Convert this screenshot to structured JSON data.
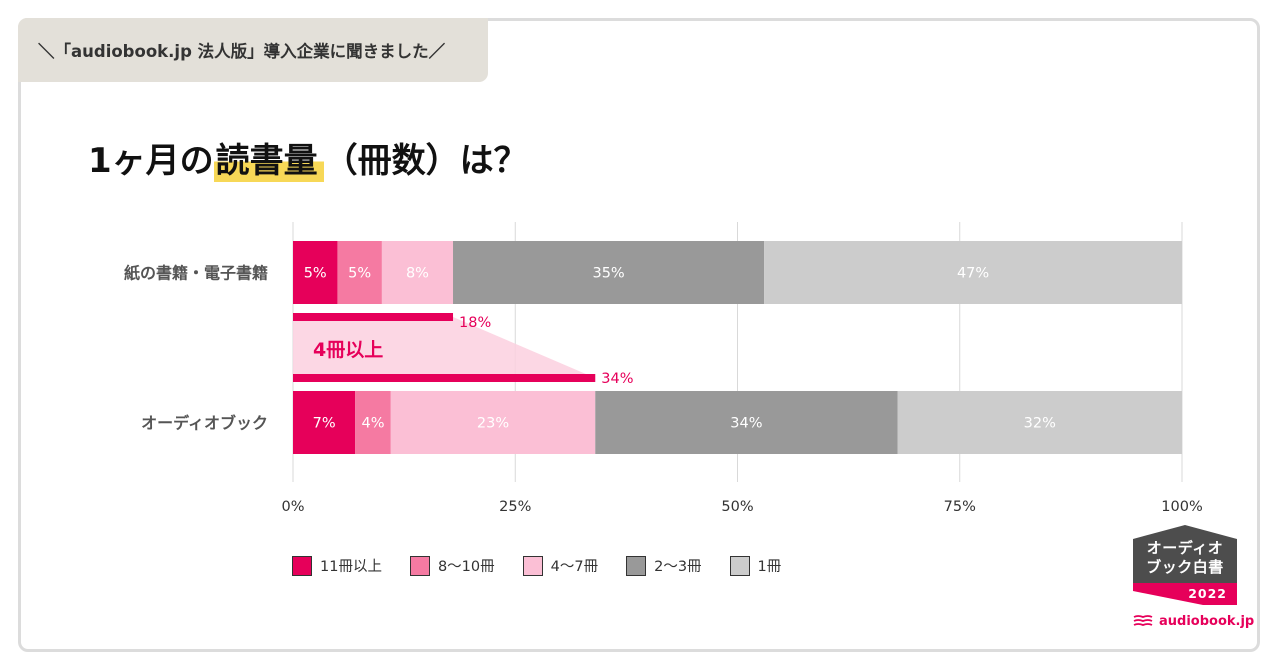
{
  "header": {
    "tag": "＼「audiobook.jp 法人版」導入企業に聞きました／",
    "title_pre": "1ヶ月の",
    "title_highlight": "読書量",
    "title_post": "（冊数）は？"
  },
  "colors": {
    "pink_dark": "#e6005a",
    "pink_mid": "#f57aa2",
    "pink_light": "#fbbfd5",
    "gray_dark": "#999999",
    "gray_light": "#cccccc",
    "highlight": "#f7d857",
    "band": "#fbd0df"
  },
  "chart_data": {
    "type": "bar",
    "orientation": "horizontal",
    "stacked": true,
    "categories": [
      "紙の書籍・電子書籍",
      "オーディオブック"
    ],
    "series": [
      {
        "name": "11冊以上",
        "values": [
          5,
          7
        ],
        "labels": [
          "5%",
          "7%"
        ]
      },
      {
        "name": "8〜10冊",
        "values": [
          5,
          4
        ],
        "labels": [
          "5%",
          "4%"
        ]
      },
      {
        "name": "4〜7冊",
        "values": [
          8,
          23
        ],
        "labels": [
          "8%",
          "23%"
        ]
      },
      {
        "name": "2〜3冊",
        "values": [
          35,
          34
        ],
        "labels": [
          "35%",
          "34%"
        ]
      },
      {
        "name": "1冊",
        "values": [
          47,
          32
        ],
        "labels": [
          "47%",
          "32%"
        ]
      }
    ],
    "xlim": [
      0,
      100
    ],
    "xticks": [
      "0%",
      "25%",
      "50%",
      "75%",
      "100%"
    ],
    "grid": true,
    "legend_position": "bottom",
    "annotation": {
      "label": "4冊以上",
      "values": [
        18,
        34
      ],
      "value_labels": [
        "18%",
        "34%"
      ]
    }
  },
  "badge": {
    "line1": "オーディオ",
    "line2": "ブック白書",
    "year": "2022"
  },
  "logo": {
    "text": "audiobook.jp"
  }
}
